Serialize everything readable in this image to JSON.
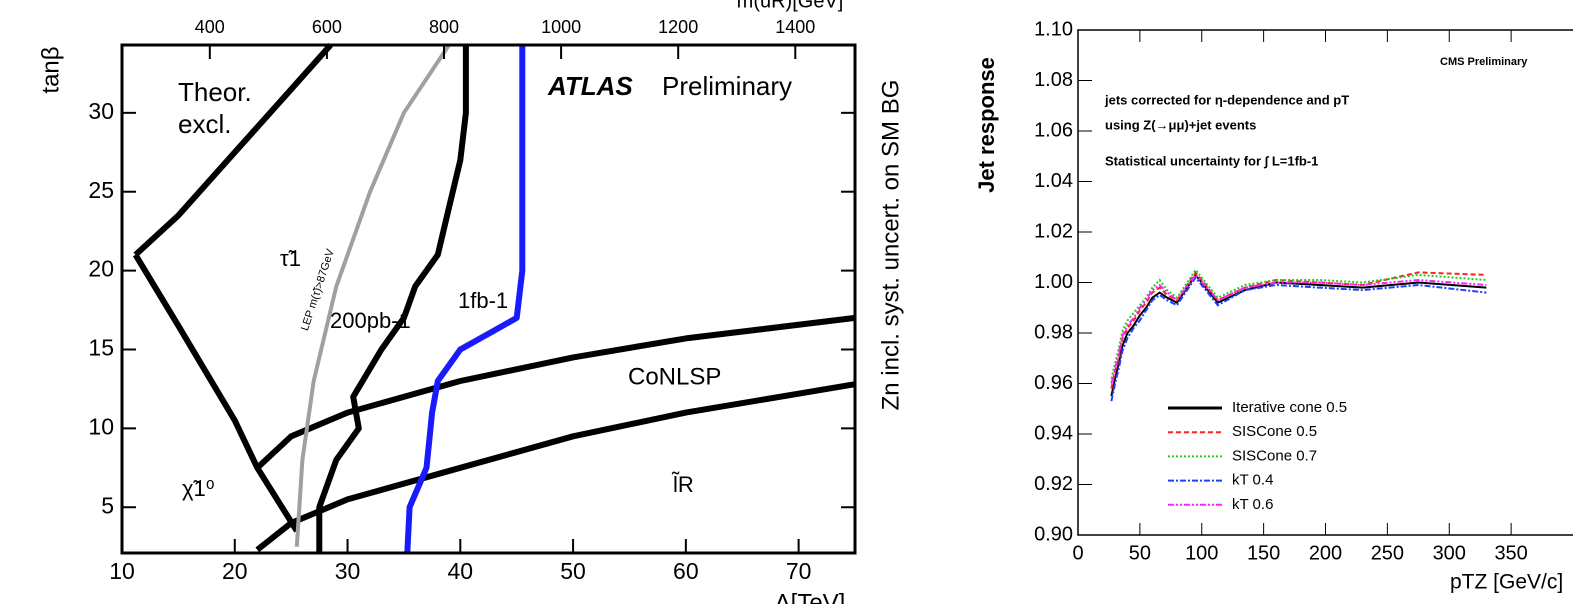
{
  "chart_data": [
    {
      "type": "line",
      "xlabel": "Λ[TeV]",
      "ylabel": "tanβ",
      "x2label": "m(ũR)[GeV]",
      "y2label": "Zn incl. syst. uncert. on SM BG",
      "xlim": [
        10,
        75
      ],
      "xticks": [
        10,
        20,
        30,
        40,
        50,
        60,
        70
      ],
      "ylim": [
        2.1,
        34.3
      ],
      "yticks": [
        5,
        10,
        15,
        20,
        25,
        30
      ],
      "x2lim": [
        250,
        1502
      ],
      "x2ticks": [
        400,
        600,
        800,
        1000,
        1200,
        1400
      ],
      "annotations": [
        "ATLAS",
        "Preliminary",
        "Theor.",
        "excl.",
        "τ̃1",
        "LEP m(τ̃)>87GeV",
        "200pb-1",
        "1fb-1",
        "CoNLSP",
        "χ̃1⁰",
        "l̃R"
      ],
      "series": [
        {
          "color": "#000000",
          "x": [
            11.2,
            15,
            20,
            25,
            28.5
          ],
          "values": [
            21,
            23.5,
            27.5,
            31.5,
            34.3
          ]
        },
        {
          "color": "#000000",
          "x": [
            11.2,
            15,
            20,
            22,
            25.5
          ],
          "values": [
            21,
            16.5,
            10.5,
            7.5,
            3.5
          ]
        },
        {
          "color": "#000000",
          "x": [
            22,
            25,
            30,
            40,
            50,
            60,
            75
          ],
          "values": [
            7.5,
            9.5,
            11,
            13,
            14.5,
            15.7,
            17
          ]
        },
        {
          "color": "#000000",
          "x": [
            22,
            25,
            30,
            40,
            50,
            60,
            75
          ],
          "values": [
            2.3,
            4,
            5.5,
            7.5,
            9.5,
            11,
            12.8
          ]
        },
        {
          "color": "#a0a0a0",
          "x": [
            25.5,
            26,
            27,
            29,
            32,
            35,
            39
          ],
          "values": [
            2.5,
            8,
            13,
            19,
            25,
            30,
            34.3
          ]
        },
        {
          "color": "#000000",
          "x": [
            27.5,
            27.5,
            29,
            31,
            30.5,
            33,
            35,
            36,
            38,
            39,
            40,
            40.5,
            40.5
          ],
          "values": [
            2.1,
            5,
            8,
            10,
            12,
            15,
            17,
            19,
            21,
            24,
            27,
            30,
            34.3
          ]
        },
        {
          "color": "#1a1aff",
          "x": [
            35.3,
            35.5,
            37,
            37.5,
            38,
            40,
            43,
            45,
            45.5,
            45.5,
            45.5
          ],
          "values": [
            2.1,
            5,
            7.5,
            11,
            13,
            15,
            16.2,
            17,
            20,
            25,
            34.3
          ]
        }
      ]
    },
    {
      "type": "line",
      "xlabel": "pTZ [GeV/c]",
      "ylabel": "Jet response",
      "xlim": [
        0,
        400
      ],
      "xticks": [
        0,
        50,
        100,
        150,
        200,
        250,
        300,
        350
      ],
      "ylim": [
        0.9,
        1.1
      ],
      "yticks": [
        {
          "value": 0.9,
          "label": "0.90"
        },
        0.92,
        0.94,
        0.96,
        0.98,
        {
          "value": 1.0,
          "label": "1.00"
        },
        1.02,
        1.04,
        1.06,
        1.08,
        {
          "value": 1.1,
          "label": "1.10"
        }
      ],
      "annotations": [
        "CMS Preliminary",
        "jets corrected for η-dependence and pT",
        "using Z(→μμ)+jet events",
        "Statistical uncertainty for ∫ L=1fb-1"
      ],
      "x": [
        27,
        30,
        33,
        36,
        40,
        45,
        50,
        55,
        60,
        66,
        72,
        80,
        95,
        113,
        135,
        160,
        195,
        230,
        275,
        330
      ],
      "series": [
        {
          "name": "Iterative cone 0.5",
          "color": "#000000",
          "dash": "none",
          "values": [
            0.955,
            0.962,
            0.968,
            0.975,
            0.98,
            0.983,
            0.987,
            0.99,
            0.994,
            0.996,
            0.994,
            0.992,
            1.003,
            0.992,
            0.997,
            1.0,
            0.999,
            0.998,
            1.0,
            0.998
          ]
        },
        {
          "name": "SISCone 0.5",
          "color": "#ff2020",
          "dash": "5,3",
          "values": [
            0.958,
            0.965,
            0.97,
            0.978,
            0.982,
            0.985,
            0.989,
            0.992,
            0.996,
            0.998,
            0.995,
            0.993,
            1.004,
            0.993,
            0.998,
            1.001,
            1.0,
            0.999,
            1.004,
            1.003
          ]
        },
        {
          "name": "SISCone 0.7",
          "color": "#20d020",
          "dash": "2,2",
          "values": [
            0.962,
            0.968,
            0.974,
            0.981,
            0.985,
            0.988,
            0.991,
            0.994,
            0.998,
            1.001,
            0.997,
            0.994,
            1.005,
            0.994,
            0.999,
            1.001,
            1.001,
            1.0,
            1.003,
            1.001
          ]
        },
        {
          "name": "kT 0.4",
          "color": "#2040ff",
          "dash": "6,2,2,2",
          "values": [
            0.953,
            0.96,
            0.966,
            0.973,
            0.978,
            0.982,
            0.985,
            0.989,
            0.993,
            0.995,
            0.993,
            0.991,
            1.002,
            0.991,
            0.997,
            0.999,
            0.998,
            0.997,
            0.999,
            0.996
          ]
        },
        {
          "name": "kT 0.6",
          "color": "#ff20ff",
          "dash": "6,2,2,2,2,2",
          "values": [
            0.96,
            0.966,
            0.972,
            0.979,
            0.983,
            0.986,
            0.99,
            0.993,
            0.997,
            0.999,
            0.996,
            0.993,
            1.003,
            0.993,
            0.998,
            1.0,
            1.0,
            0.999,
            1.001,
            0.999
          ]
        }
      ]
    }
  ]
}
